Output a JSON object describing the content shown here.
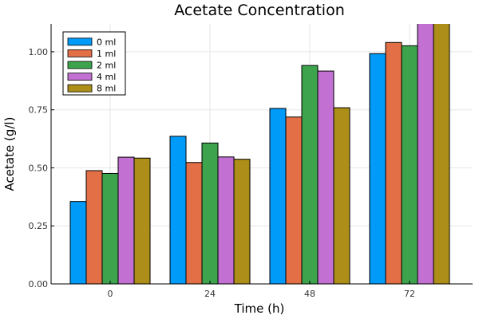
{
  "chart_data": {
    "type": "bar",
    "title": "Acetate Concentration",
    "xlabel": "Time (h)",
    "ylabel": "Acetate (g/l)",
    "categories": [
      "0",
      "24",
      "48",
      "72"
    ],
    "ylim": [
      0,
      1.12
    ],
    "yticks": [
      "0.00",
      "0.25",
      "0.50",
      "0.75",
      "1.00"
    ],
    "grid": true,
    "legend_position": "top-left",
    "series": [
      {
        "name": "0 ml",
        "color": "#009af9",
        "values": [
          0.355,
          0.636,
          0.756,
          0.992
        ]
      },
      {
        "name": "1 ml",
        "color": "#e26f46",
        "values": [
          0.488,
          0.523,
          0.719,
          1.04
        ]
      },
      {
        "name": "2 ml",
        "color": "#3da44d",
        "values": [
          0.476,
          0.607,
          0.941,
          1.026
        ]
      },
      {
        "name": "4 ml",
        "color": "#c271d2",
        "values": [
          0.546,
          0.547,
          0.917,
          1.15
        ]
      },
      {
        "name": "8 ml",
        "color": "#ac8e18",
        "values": [
          0.542,
          0.537,
          0.759,
          1.15
        ]
      }
    ]
  }
}
